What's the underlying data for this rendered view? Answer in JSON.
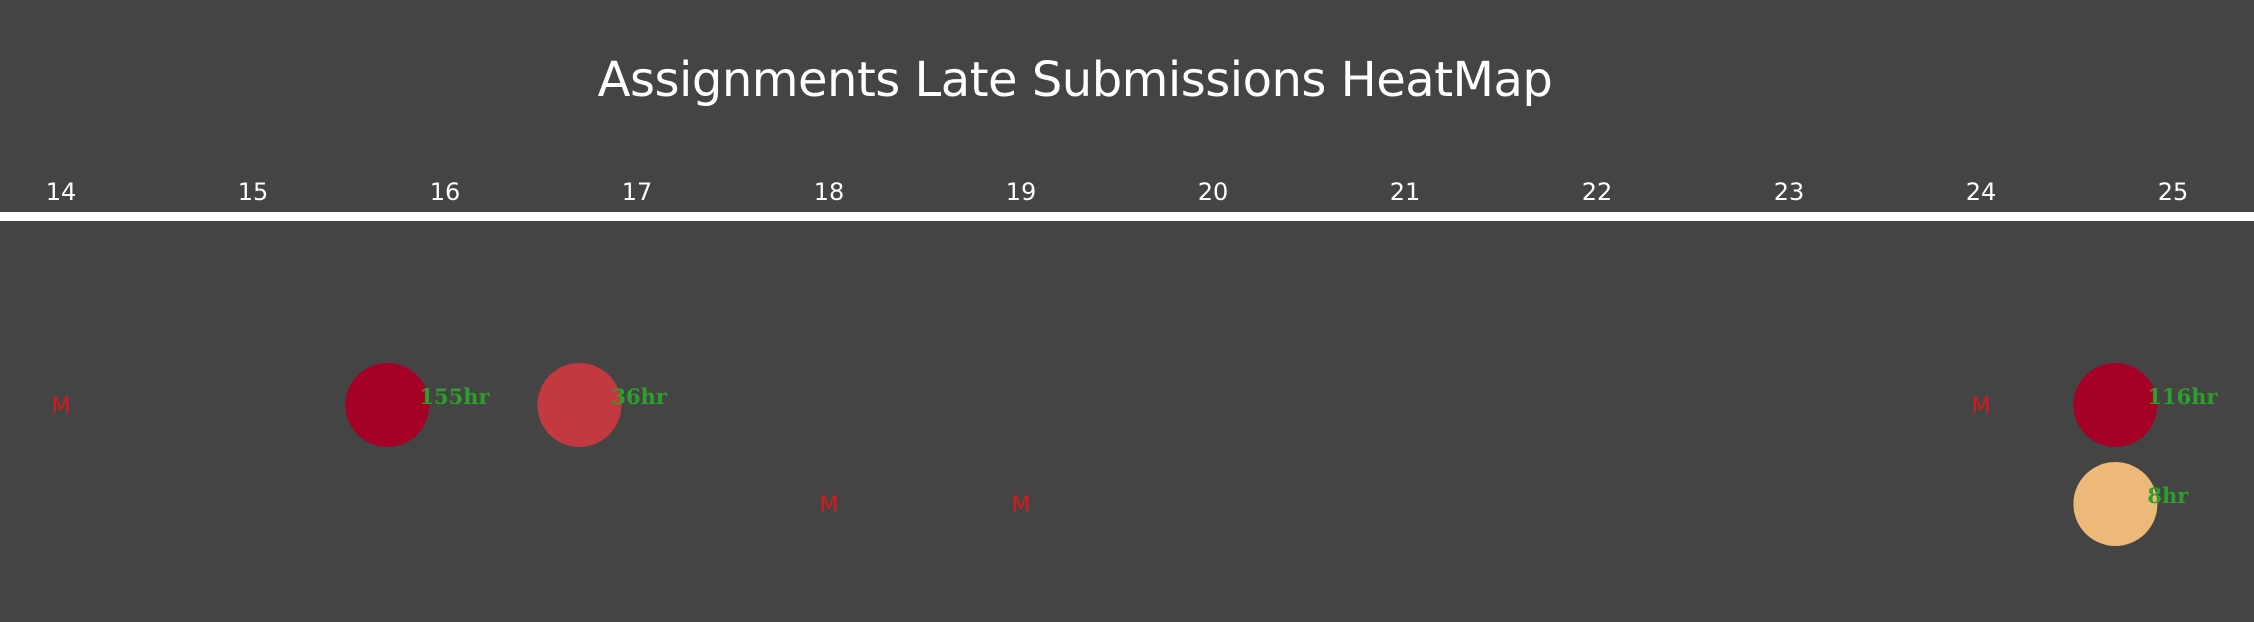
{
  "chart_data": {
    "type": "heatmap",
    "title": "Assignments Late Submissions HeatMap",
    "xlabel": "",
    "ylabel": "",
    "x_ticks": [
      "14",
      "15",
      "16",
      "17",
      "18",
      "19",
      "20",
      "21",
      "22",
      "23",
      "24",
      "25"
    ],
    "xlim": [
      14,
      25
    ],
    "rows": 2,
    "missing_label": "M",
    "points": [
      {
        "row": 1,
        "x": 15.7,
        "hours": 155,
        "label": "155hr",
        "color": "#a50026"
      },
      {
        "row": 1,
        "x": 16.7,
        "hours": 36,
        "label": "36hr",
        "color": "#c23a40"
      },
      {
        "row": 1,
        "x": 24.7,
        "hours": 116,
        "label": "116hr",
        "color": "#a50026"
      },
      {
        "row": 2,
        "x": 24.7,
        "hours": 8,
        "label": "8hr",
        "color": "#edb978"
      }
    ],
    "missing": [
      {
        "row": 1,
        "x": 14
      },
      {
        "row": 1,
        "x": 24
      },
      {
        "row": 2,
        "x": 18
      },
      {
        "row": 2,
        "x": 19
      }
    ],
    "colors": {
      "background": "#444444",
      "axis": "#ffffff",
      "text": "#ffffff",
      "missing": "#d7191c",
      "value_label": "#2ca02c"
    }
  }
}
